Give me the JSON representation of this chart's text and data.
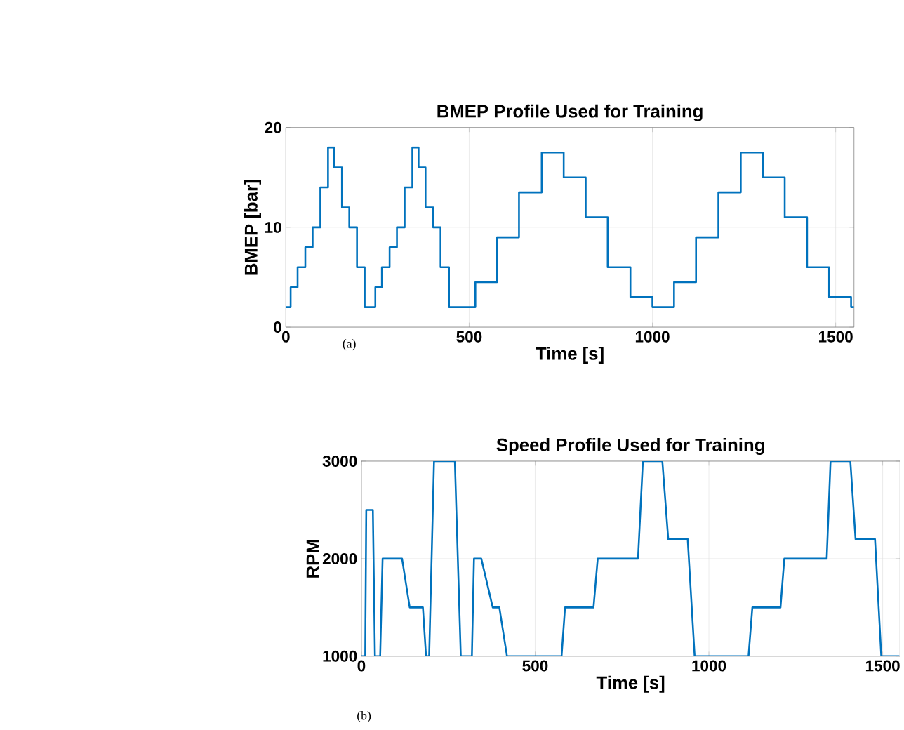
{
  "chart_data": [
    {
      "type": "step",
      "title": "BMEP Profile Used for Training",
      "xlabel": "Time [s]",
      "ylabel": "BMEP [bar]",
      "annotations": [
        "(a)"
      ],
      "x": [
        0,
        13,
        32,
        53,
        73,
        94,
        115,
        132,
        153,
        173,
        194,
        215,
        244,
        262,
        283,
        303,
        324,
        345,
        362,
        381,
        402,
        422,
        445,
        517,
        576,
        636,
        698,
        758,
        818,
        878,
        940,
        1000,
        1059,
        1119,
        1180,
        1241,
        1301,
        1361,
        1422,
        1482,
        1542,
        1550
      ],
      "series": [
        {
          "color": "#0072bd",
          "values": [
            2,
            4,
            6,
            8,
            10,
            14,
            18,
            16,
            12,
            10,
            6,
            2,
            4,
            6,
            8,
            10,
            14,
            18,
            16,
            12,
            10,
            6,
            2,
            4.5,
            9,
            13.5,
            17.5,
            15,
            11,
            6,
            3,
            2,
            4.5,
            9,
            13.5,
            17.5,
            15,
            11,
            6,
            3,
            2,
            2
          ]
        }
      ],
      "xlim": [
        0,
        1550
      ],
      "ylim": [
        0,
        20
      ],
      "xticks": [
        0,
        500,
        1000,
        1500
      ],
      "yticks": [
        0,
        10,
        20
      ],
      "grid": true
    },
    {
      "type": "line",
      "title": "Speed Profile Used for Training",
      "xlabel": "Time [s]",
      "ylabel": "RPM",
      "annotations": [
        "(b)"
      ],
      "x": [
        0,
        11,
        14,
        33,
        39,
        54,
        61,
        117,
        139,
        177,
        186,
        195,
        209,
        269,
        286,
        318,
        324,
        345,
        378,
        397,
        419,
        576,
        586,
        668,
        680,
        796,
        810,
        866,
        883,
        939,
        959,
        1114,
        1125,
        1206,
        1217,
        1339,
        1350,
        1407,
        1422,
        1478,
        1496,
        1548
      ],
      "series": [
        {
          "color": "#0072bd",
          "values": [
            1000,
            1000,
            2500,
            2500,
            1000,
            1000,
            2000,
            2000,
            1500,
            1500,
            1000,
            1000,
            3000,
            3000,
            1000,
            1000,
            2000,
            2000,
            1500,
            1500,
            1000,
            1000,
            1500,
            1500,
            2000,
            2000,
            3000,
            3000,
            2200,
            2200,
            1000,
            1000,
            1500,
            1500,
            2000,
            2000,
            3000,
            3000,
            2200,
            2200,
            1000,
            1000
          ]
        }
      ],
      "xlim": [
        0,
        1550
      ],
      "ylim": [
        1000,
        3000
      ],
      "xticks": [
        0,
        500,
        1000,
        1500
      ],
      "yticks": [
        1000,
        2000,
        3000
      ],
      "grid": true
    }
  ]
}
